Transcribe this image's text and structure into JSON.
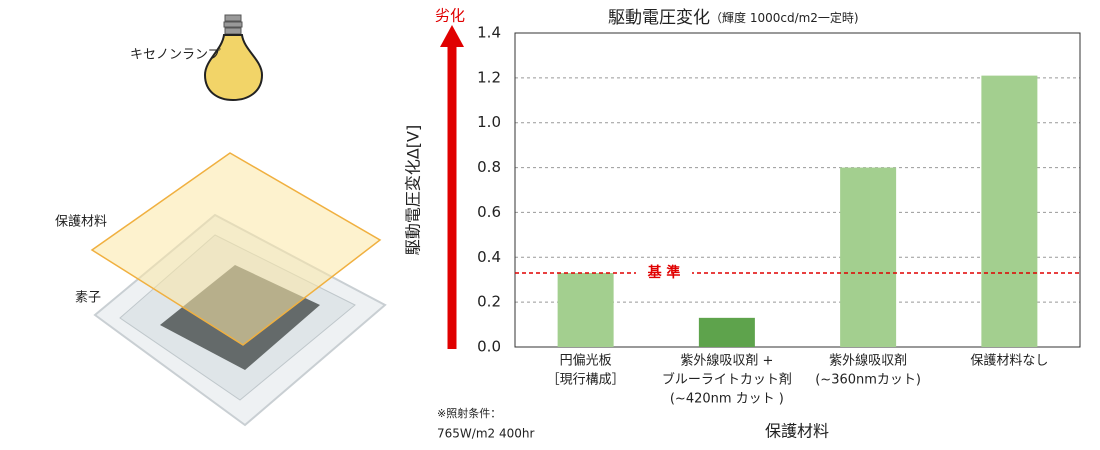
{
  "illustration": {
    "lamp_label": "キセノンランプ",
    "cover_label": "保護材料",
    "device_label": "素子"
  },
  "chart_data": {
    "type": "bar",
    "title": "駆動電圧変化",
    "subtitle": "（輝度 1000cd/m2一定時)",
    "y_label": "駆動電圧変化Δ[V]",
    "x_label": "保護材料",
    "arrow_label": "劣化",
    "arrow_color": "#e00000",
    "categories": [
      [
        "円偏光板",
        "［現行構成］"
      ],
      [
        "紫外線吸収剤 +",
        "ブルーライトカット剤",
        "(~420nm カット )"
      ],
      [
        "紫外線吸収剤",
        "(~360nmカット)"
      ],
      [
        "保護材料なし"
      ]
    ],
    "values": [
      0.33,
      0.13,
      0.8,
      1.21
    ],
    "colors": [
      "#a3cf8f",
      "#5ea34c",
      "#a3cf8f",
      "#a3cf8f"
    ],
    "ylim": [
      0,
      1.4
    ],
    "yticks": [
      {
        "value": 0,
        "label": "0.0"
      },
      0.2,
      0.4,
      0.6,
      0.8,
      {
        "value": 1,
        "label": "1.0"
      },
      1.2,
      1.4
    ],
    "grid": true,
    "reference": {
      "value": 0.33,
      "label": "基 準",
      "color": "#e00000"
    }
  },
  "note": [
    "※照射条件：",
    "765W/m2  400hr"
  ]
}
